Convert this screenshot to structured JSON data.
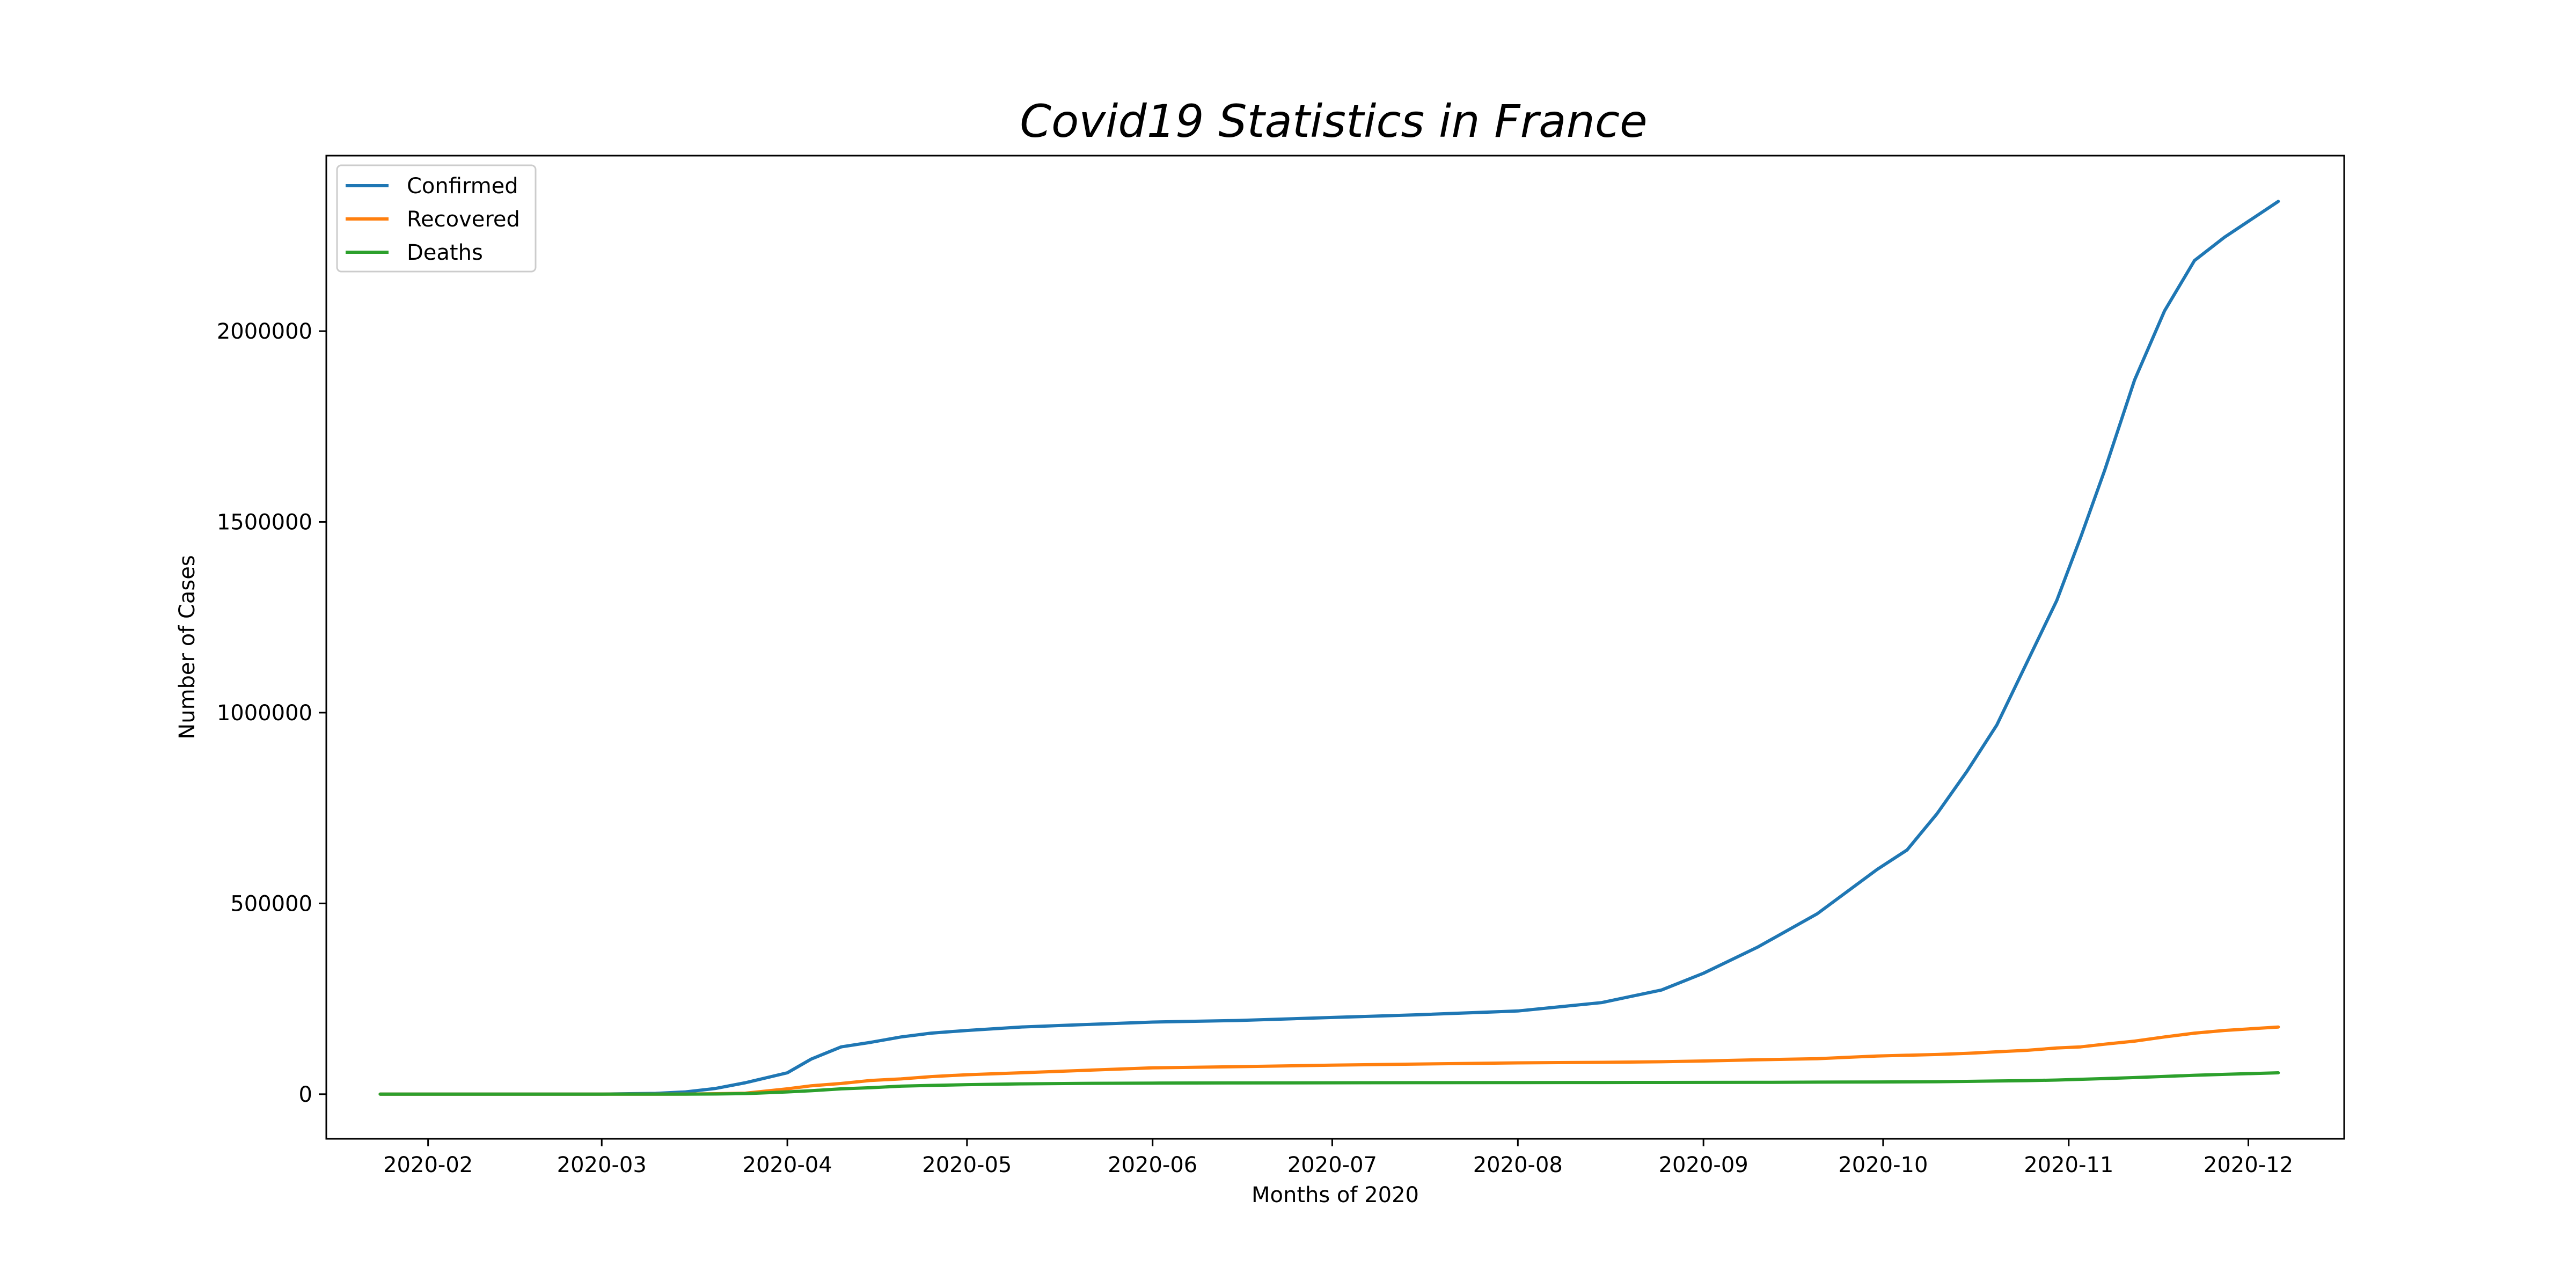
{
  "chart_data": {
    "type": "line",
    "title": "Covid19 Statistics in France",
    "xlabel": "Months of 2020",
    "ylabel": "Number of Cases",
    "x_ticks": [
      "2020-02",
      "2020-03",
      "2020-04",
      "2020-05",
      "2020-06",
      "2020-07",
      "2020-08",
      "2020-09",
      "2020-10",
      "2020-11",
      "2020-12"
    ],
    "y_ticks": [
      0,
      500000,
      1000000,
      1500000,
      2000000
    ],
    "x_range": [
      "2020-01-15",
      "2020-12-17"
    ],
    "ylim": [
      -117000,
      2460000
    ],
    "grid": false,
    "legend_position": "top-left",
    "x": [
      "2020-01-24",
      "2020-02-15",
      "2020-03-01",
      "2020-03-10",
      "2020-03-15",
      "2020-03-20",
      "2020-03-25",
      "2020-04-01",
      "2020-04-05",
      "2020-04-10",
      "2020-04-15",
      "2020-04-20",
      "2020-04-25",
      "2020-05-01",
      "2020-05-10",
      "2020-05-20",
      "2020-06-01",
      "2020-06-15",
      "2020-07-01",
      "2020-07-15",
      "2020-08-01",
      "2020-08-15",
      "2020-08-25",
      "2020-09-01",
      "2020-09-10",
      "2020-09-20",
      "2020-09-30",
      "2020-10-05",
      "2020-10-10",
      "2020-10-15",
      "2020-10-20",
      "2020-10-25",
      "2020-10-30",
      "2020-11-03",
      "2020-11-07",
      "2020-11-12",
      "2020-11-17",
      "2020-11-22",
      "2020-11-27",
      "2020-12-06"
    ],
    "series": [
      {
        "name": "Confirmed",
        "color": "#1f77b4",
        "values": [
          0,
          50,
          200,
          2000,
          6000,
          15000,
          30000,
          56000,
          92000,
          124000,
          136000,
          150000,
          160000,
          167000,
          176000,
          182000,
          189000,
          193000,
          201000,
          208000,
          218000,
          240000,
          273000,
          317000,
          385000,
          473000,
          589000,
          640000,
          735000,
          846000,
          968000,
          1131000,
          1294000,
          1460000,
          1635000,
          1872000,
          2053000,
          2185000,
          2246000,
          2340000
        ]
      },
      {
        "name": "Recovered",
        "color": "#ff7f0e",
        "values": [
          0,
          10,
          20,
          100,
          300,
          1200,
          2500,
          14000,
          22000,
          28000,
          36000,
          40000,
          46000,
          51000,
          56000,
          62000,
          69000,
          72000,
          76000,
          79000,
          82000,
          83500,
          85000,
          87000,
          90000,
          93000,
          100000,
          102000,
          104000,
          107000,
          111000,
          115000,
          121000,
          124000,
          131000,
          139000,
          150000,
          160000,
          167000,
          176000
        ]
      },
      {
        "name": "Deaths",
        "color": "#2ca02c",
        "values": [
          0,
          0,
          0,
          30,
          100,
          500,
          1500,
          6000,
          9000,
          14000,
          17000,
          21000,
          23000,
          25000,
          27000,
          28300,
          29000,
          29500,
          29900,
          30200,
          30400,
          30600,
          30700,
          30800,
          31000,
          31500,
          32000,
          32300,
          32700,
          33500,
          34500,
          35500,
          37000,
          39000,
          41000,
          43500,
          46500,
          49500,
          52000,
          56000
        ]
      }
    ]
  }
}
